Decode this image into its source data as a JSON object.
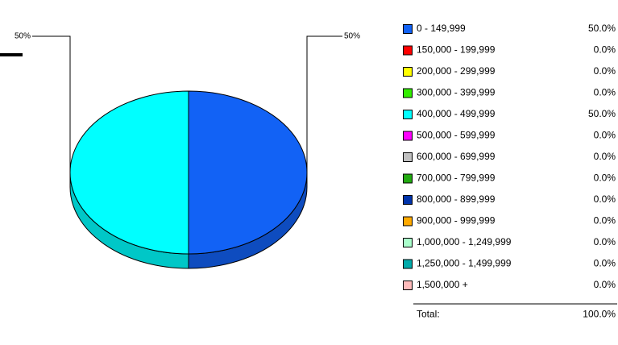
{
  "chart_data": {
    "type": "pie",
    "categories": [
      "0 - 149,999",
      "150,000 - 199,999",
      "200,000 - 299,999",
      "300,000 - 399,999",
      "400,000 - 499,999",
      "500,000 - 599,999",
      "600,000 - 699,999",
      "700,000 - 799,999",
      "800,000 - 899,999",
      "900,000 - 999,999",
      "1,000,000 - 1,249,999",
      "1,250,000 - 1,499,999",
      "1,500,000 +"
    ],
    "values": [
      50,
      0,
      0,
      0,
      50,
      0,
      0,
      0,
      0,
      0,
      0,
      0,
      0
    ],
    "value_labels": [
      "50.0%",
      "0.0%",
      "0.0%",
      "0.0%",
      "50.0%",
      "0.0%",
      "0.0%",
      "0.0%",
      "0.0%",
      "0.0%",
      "0.0%",
      "0.0%",
      "0.0%"
    ],
    "slice_labels": [
      "50%",
      null,
      null,
      null,
      "50%",
      null,
      null,
      null,
      null,
      null,
      null,
      null,
      null
    ],
    "colors": [
      "#1262f5",
      "#ff0000",
      "#ffff00",
      "#33ee00",
      "#00ffff",
      "#ff00ff",
      "#c0c0c0",
      "#22aa11",
      "#0033aa",
      "#ffaa00",
      "#aaffcc",
      "#00aaaa",
      "#ffbbbb"
    ],
    "total_label": "Total:",
    "total": "100.0%"
  }
}
